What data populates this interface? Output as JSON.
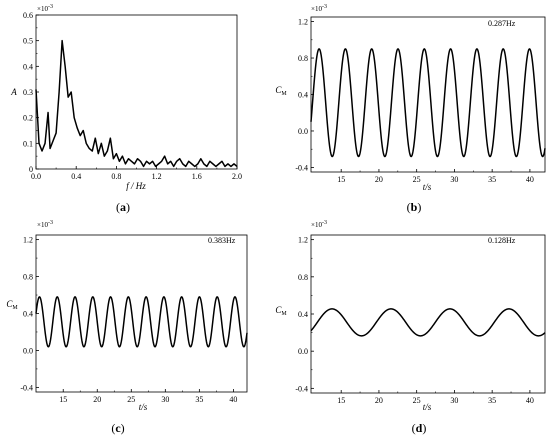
{
  "chart_data": [
    {
      "panel": "(a)",
      "caption_open": "(",
      "caption_letter": "a",
      "caption_close": ")",
      "type": "line",
      "xlabel": "f / Hz",
      "ylabel": "A",
      "multiplier": "×10",
      "multiplier_exp": "-3",
      "xlim": [
        0,
        2.0
      ],
      "ylim": [
        0,
        0.6
      ],
      "xticks": [
        0.0,
        0.4,
        0.8,
        1.2,
        1.6,
        2.0
      ],
      "xtick_labels": [
        "0.0",
        "0.4",
        "0.8",
        "1.2",
        "1.6",
        "2.0"
      ],
      "yticks": [
        0,
        0.1,
        0.2,
        0.3,
        0.4,
        0.5,
        0.6
      ],
      "ytick_labels": [
        "0",
        "0.1",
        "0.2",
        "0.3",
        "0.4",
        "0.5",
        "0.6"
      ],
      "x": [
        0.0,
        0.03,
        0.06,
        0.09,
        0.12,
        0.14,
        0.17,
        0.2,
        0.23,
        0.26,
        0.29,
        0.32,
        0.35,
        0.38,
        0.41,
        0.44,
        0.47,
        0.5,
        0.53,
        0.56,
        0.59,
        0.62,
        0.65,
        0.68,
        0.71,
        0.74,
        0.77,
        0.8,
        0.83,
        0.86,
        0.89,
        0.92,
        0.95,
        0.98,
        1.01,
        1.04,
        1.07,
        1.1,
        1.13,
        1.16,
        1.19,
        1.22,
        1.25,
        1.28,
        1.31,
        1.34,
        1.37,
        1.4,
        1.43,
        1.46,
        1.49,
        1.52,
        1.55,
        1.58,
        1.61,
        1.64,
        1.67,
        1.7,
        1.73,
        1.76,
        1.79,
        1.82,
        1.85,
        1.88,
        1.91,
        1.94,
        1.97,
        2.0
      ],
      "y": [
        0.31,
        0.1,
        0.07,
        0.1,
        0.22,
        0.08,
        0.11,
        0.14,
        0.3,
        0.5,
        0.4,
        0.28,
        0.3,
        0.2,
        0.16,
        0.13,
        0.15,
        0.1,
        0.08,
        0.07,
        0.12,
        0.06,
        0.1,
        0.05,
        0.07,
        0.12,
        0.04,
        0.06,
        0.03,
        0.05,
        0.02,
        0.04,
        0.03,
        0.02,
        0.04,
        0.03,
        0.01,
        0.03,
        0.02,
        0.03,
        0.01,
        0.02,
        0.03,
        0.05,
        0.02,
        0.03,
        0.01,
        0.03,
        0.04,
        0.02,
        0.01,
        0.03,
        0.02,
        0.01,
        0.02,
        0.04,
        0.02,
        0.01,
        0.03,
        0.02,
        0.01,
        0.02,
        0.03,
        0.01,
        0.02,
        0.01,
        0.02,
        0.01
      ]
    },
    {
      "panel": "(b)",
      "caption_open": "(",
      "caption_letter": "b",
      "caption_close": ")",
      "type": "line",
      "annotation": "0.287Hz",
      "xlabel": "t/s",
      "ylabel": "C",
      "ylabel_sub": "M",
      "multiplier": "×10",
      "multiplier_exp": "-3",
      "xlim": [
        11,
        42
      ],
      "ylim": [
        -0.45,
        1.25
      ],
      "xticks": [
        15,
        20,
        25,
        30,
        35,
        40
      ],
      "xtick_labels": [
        "15",
        "20",
        "25",
        "30",
        "35",
        "40"
      ],
      "yticks": [
        -0.4,
        0.0,
        0.4,
        0.8,
        1.2
      ],
      "ytick_labels": [
        "-0.4",
        "0.0",
        "0.4",
        "0.8",
        "1.2"
      ],
      "signal": {
        "mean": 0.31,
        "amplitude": 0.59,
        "frequency_hz": 0.287,
        "t_start": 11,
        "t_end": 42,
        "value_at_t_start": 0.1,
        "value_at_t_end": 0.1
      }
    },
    {
      "panel": "(c)",
      "caption_open": "(",
      "caption_letter": "c",
      "caption_close": ")",
      "type": "line",
      "annotation": "0.383Hz",
      "xlabel": "t/s",
      "ylabel": "C",
      "ylabel_sub": "M",
      "multiplier": "×10",
      "multiplier_exp": "-3",
      "xlim": [
        11,
        42
      ],
      "ylim": [
        -0.45,
        1.25
      ],
      "xticks": [
        15,
        20,
        25,
        30,
        35,
        40
      ],
      "xtick_labels": [
        "15",
        "20",
        "25",
        "30",
        "35",
        "40"
      ],
      "yticks": [
        -0.4,
        0.0,
        0.4,
        0.8,
        1.2
      ],
      "ytick_labels": [
        "-0.4",
        "0.0",
        "0.4",
        "0.8",
        "1.2"
      ],
      "signal": {
        "mean": 0.31,
        "amplitude": 0.27,
        "frequency_hz": 0.383,
        "t_start": 11,
        "t_end": 42,
        "value_at_t_start": 0.4,
        "value_at_t_end": 0.4
      }
    },
    {
      "panel": "(d)",
      "caption_open": "(",
      "caption_letter": "d",
      "caption_close": ")",
      "type": "line",
      "annotation": "0.128Hz",
      "xlabel": "t/s",
      "ylabel": "C",
      "ylabel_sub": "M",
      "multiplier": "×10",
      "multiplier_exp": "-3",
      "xlim": [
        11,
        42
      ],
      "ylim": [
        -0.45,
        1.25
      ],
      "xticks": [
        15,
        20,
        25,
        30,
        35,
        40
      ],
      "xtick_labels": [
        "15",
        "20",
        "25",
        "30",
        "35",
        "40"
      ],
      "yticks": [
        -0.4,
        0.0,
        0.4,
        0.8,
        1.2
      ],
      "ytick_labels": [
        "-0.4",
        "0.0",
        "0.4",
        "0.8",
        "1.2"
      ],
      "signal": {
        "mean": 0.31,
        "amplitude": 0.145,
        "frequency_hz": 0.128,
        "t_start": 11,
        "t_end": 42,
        "value_at_t_start": 0.22,
        "value_at_t_end": 0.22
      }
    }
  ]
}
